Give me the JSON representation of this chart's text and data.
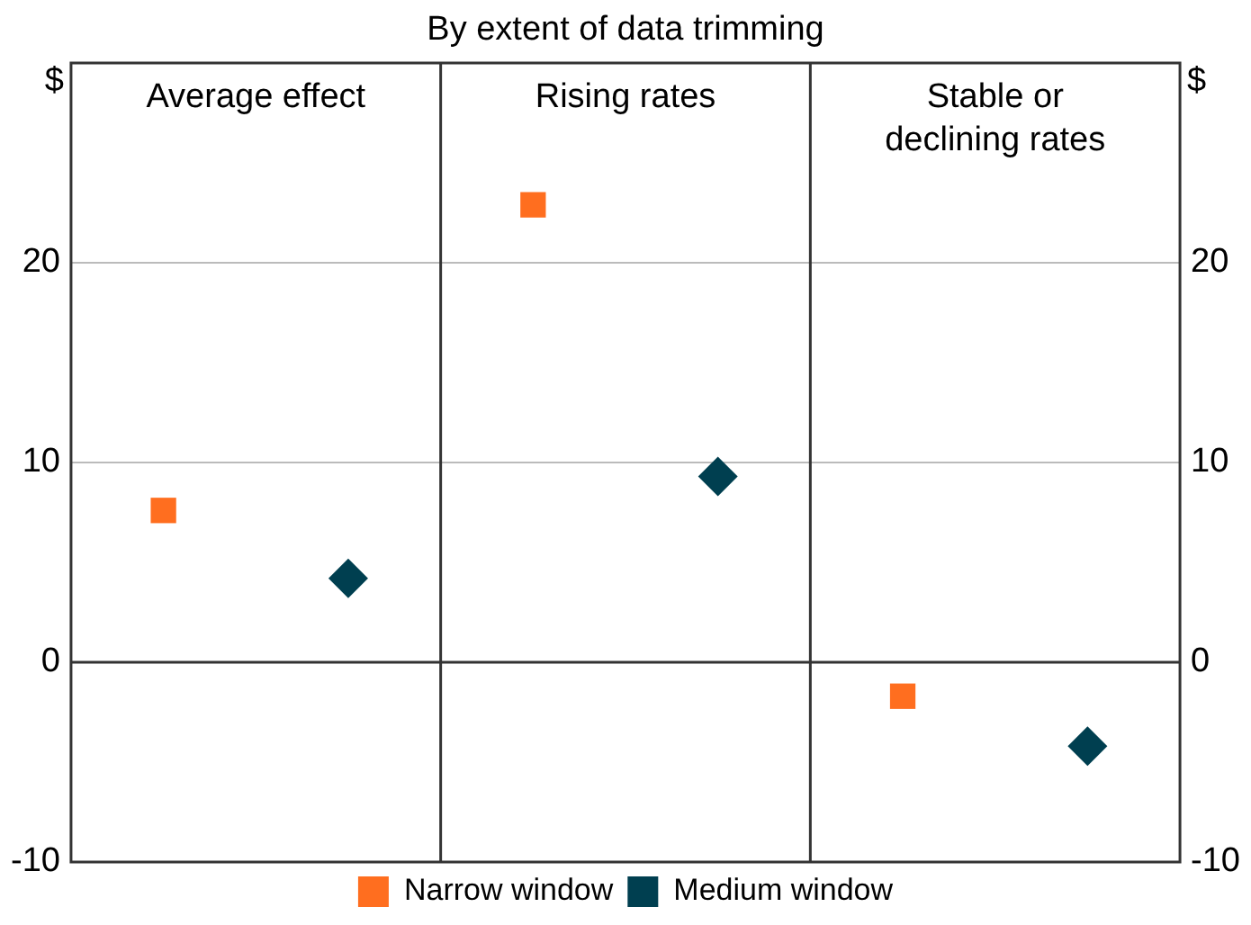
{
  "chart_data": {
    "type": "scatter",
    "subtitle": "By extent of data trimming",
    "ylabel": "$",
    "y2label": "$",
    "categories": [
      "Average effect",
      "Rising rates",
      "Stable or declining rates"
    ],
    "series": [
      {
        "name": "Narrow window",
        "color": "#ff6e1f",
        "marker": "square",
        "values": [
          7.6,
          22.9,
          -1.7
        ]
      },
      {
        "name": "Medium window",
        "color": "#003f50",
        "marker": "diamond",
        "values": [
          4.2,
          9.3,
          -4.2
        ]
      }
    ],
    "ylim": [
      -10,
      30
    ],
    "yticks": [
      -10,
      0,
      10,
      20
    ],
    "y2lim": [
      -10,
      30
    ],
    "y2ticks": [
      -10,
      0,
      10,
      20
    ],
    "grid": "y",
    "legend": "bottom"
  }
}
